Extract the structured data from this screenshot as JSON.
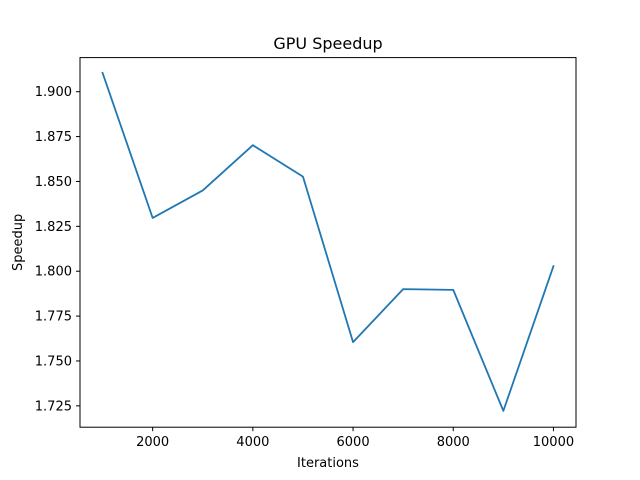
{
  "chart_data": {
    "type": "line",
    "title": "GPU Speedup",
    "xlabel": "Iterations",
    "ylabel": "Speedup",
    "xlim": [
      550,
      10450
    ],
    "ylim": [
      1.7131,
      1.919
    ],
    "xticks": [
      2000,
      4000,
      6000,
      8000,
      10000
    ],
    "yticks": [
      1.725,
      1.75,
      1.775,
      1.8,
      1.825,
      1.85,
      1.875,
      1.9
    ],
    "xtick_labels": [
      "2000",
      "4000",
      "6000",
      "8000",
      "10000"
    ],
    "ytick_labels": [
      "1.725",
      "1.750",
      "1.775",
      "1.800",
      "1.825",
      "1.850",
      "1.875",
      "1.900"
    ],
    "grid": false,
    "series": [
      {
        "color": "#1f77b4",
        "x": [
          1000,
          2000,
          3000,
          4000,
          5000,
          6000,
          7000,
          8000,
          9000,
          10000
        ],
        "y": [
          1.9105,
          1.8297,
          1.845,
          1.8702,
          1.8527,
          1.7605,
          1.79,
          1.7896,
          1.7222,
          1.8028
        ]
      }
    ]
  }
}
